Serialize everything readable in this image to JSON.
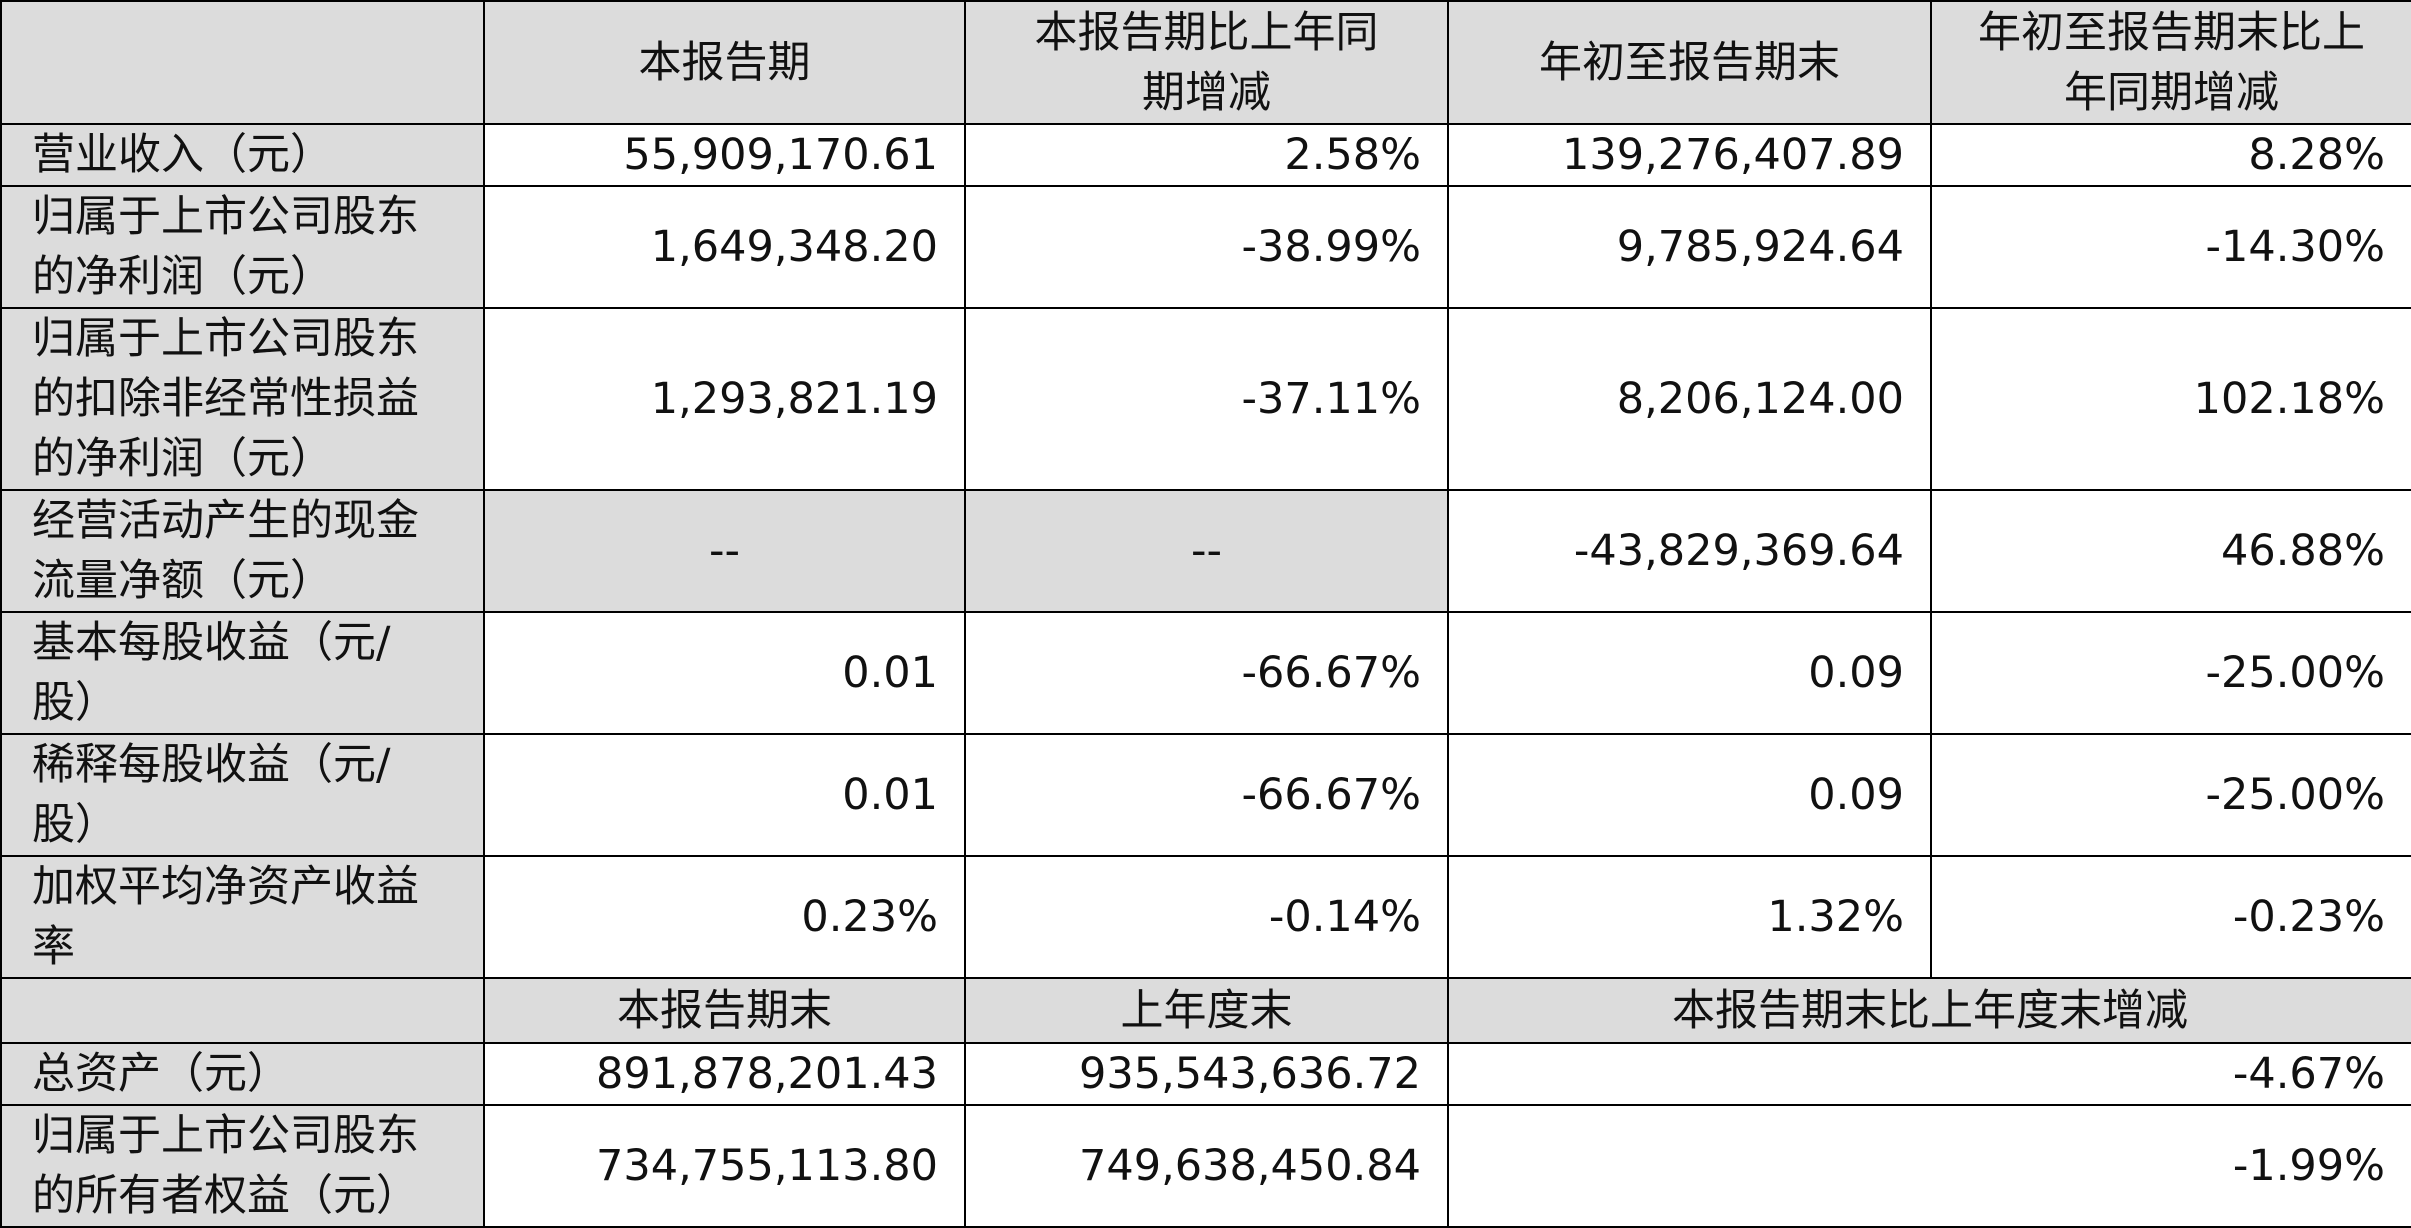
{
  "header": {
    "cells": [
      "本报告期",
      "本报告期比上年同期增减",
      "年初至报告期末",
      "年初至报告期末比上年同期增减"
    ]
  },
  "rows": [
    [
      "营业收入（元）",
      "55,909,170.61",
      "2.58%",
      "139,276,407.89",
      "8.28%"
    ],
    [
      "归属于上市公司股东的净利润（元）",
      "1,649,348.20",
      "-38.99%",
      "9,785,924.64",
      "-14.30%"
    ],
    [
      "归属于上市公司股东的扣除非经常性损益的净利润（元）",
      "1,293,821.19",
      "-37.11%",
      "8,206,124.00",
      "102.18%"
    ],
    [
      "经营活动产生的现金流量净额（元）",
      "--",
      "--",
      "-43,829,369.64",
      "46.88%"
    ],
    [
      "基本每股收益（元/股）",
      "0.01",
      "-66.67%",
      "0.09",
      "-25.00%"
    ],
    [
      "稀释每股收益（元/股）",
      "0.01",
      "-66.67%",
      "0.09",
      "-25.00%"
    ],
    [
      "加权平均净资产收益率",
      "0.23%",
      "-0.14%",
      "1.32%",
      "-0.23%"
    ]
  ],
  "subheader": {
    "cells": [
      "本报告期末",
      "上年度末",
      "本报告期末比上年度末增减"
    ]
  },
  "balance_rows": [
    [
      "总资产（元）",
      "891,878,201.43",
      "935,543,636.72",
      "-4.67%"
    ],
    [
      "归属于上市公司股东的所有者权益（元）",
      "734,755,113.80",
      "749,638,450.84",
      "-1.99%"
    ]
  ]
}
